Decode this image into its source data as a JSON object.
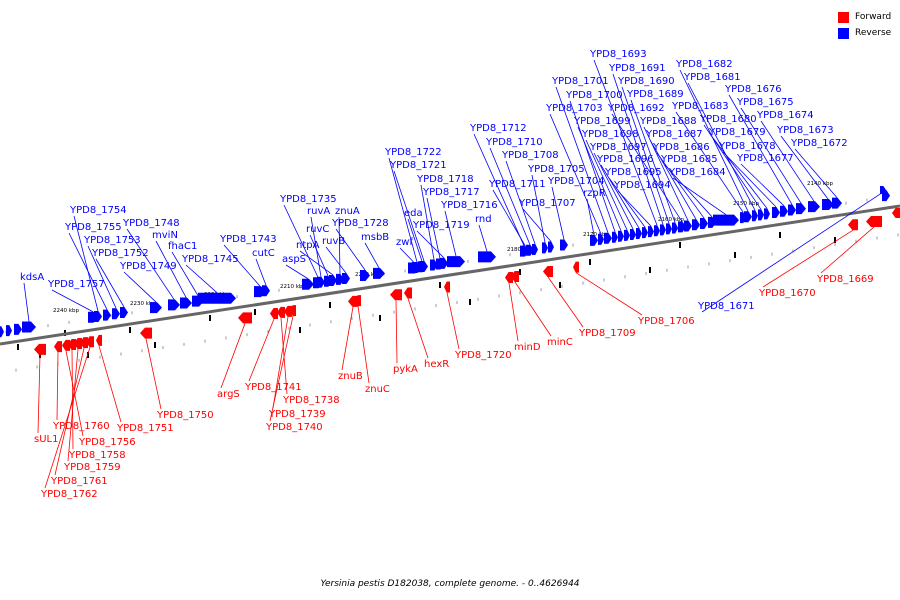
{
  "caption": "Yersinia pestis D182038, complete genome. - 0..4626944",
  "legend": [
    {
      "label": "Forward",
      "color": "#ff0000"
    },
    {
      "label": "Reverse",
      "color": "#0000ff"
    }
  ],
  "colors": {
    "forward": "#ff0000",
    "reverse": "#0000ff",
    "axis": "#666666"
  },
  "scale": {
    "ticks": [
      "2240 kbp",
      "2230 kbp",
      "2220 kbp",
      "2210 kbp",
      "2200 kbp",
      "2190 kbp",
      "2180 kbp",
      "2170 kbp",
      "2160 kbp",
      "2150 kbp",
      "2140 kbp"
    ]
  },
  "genes": [
    {
      "name": "kdsA",
      "strand": "reverse"
    },
    {
      "name": "YPD8_1757",
      "strand": "reverse"
    },
    {
      "name": "YPD8_1754",
      "strand": "reverse"
    },
    {
      "name": "YPD8_1755",
      "strand": "reverse"
    },
    {
      "name": "YPD8_1753",
      "strand": "reverse"
    },
    {
      "name": "YPD8_1752",
      "strand": "reverse"
    },
    {
      "name": "YPD8_1749",
      "strand": "reverse"
    },
    {
      "name": "YPD8_1748",
      "strand": "reverse"
    },
    {
      "name": "mviN",
      "strand": "reverse"
    },
    {
      "name": "fhaC1",
      "strand": "reverse"
    },
    {
      "name": "YPD8_1745",
      "strand": "reverse"
    },
    {
      "name": "YPD8_1743",
      "strand": "reverse"
    },
    {
      "name": "cutC",
      "strand": "reverse"
    },
    {
      "name": "aspS",
      "strand": "reverse"
    },
    {
      "name": "YPD8_1735",
      "strand": "reverse"
    },
    {
      "name": "ruvA",
      "strand": "reverse"
    },
    {
      "name": "ruvC",
      "strand": "reverse"
    },
    {
      "name": "ntpA",
      "strand": "reverse"
    },
    {
      "name": "znuA",
      "strand": "reverse"
    },
    {
      "name": "ruvB",
      "strand": "reverse"
    },
    {
      "name": "YPD8_1728",
      "strand": "reverse"
    },
    {
      "name": "msbB",
      "strand": "reverse"
    },
    {
      "name": "YPD8_1722",
      "strand": "reverse"
    },
    {
      "name": "YPD8_1721",
      "strand": "reverse"
    },
    {
      "name": "YPD8_1718",
      "strand": "reverse"
    },
    {
      "name": "YPD8_1717",
      "strand": "reverse"
    },
    {
      "name": "eda",
      "strand": "reverse"
    },
    {
      "name": "YPD8_1716",
      "strand": "reverse"
    },
    {
      "name": "zwf",
      "strand": "reverse"
    },
    {
      "name": "YPD8_1719",
      "strand": "reverse"
    },
    {
      "name": "rnd",
      "strand": "reverse"
    },
    {
      "name": "YPD8_1712",
      "strand": "reverse"
    },
    {
      "name": "YPD8_1710",
      "strand": "reverse"
    },
    {
      "name": "YPD8_1708",
      "strand": "reverse"
    },
    {
      "name": "YPD8_1711",
      "strand": "reverse"
    },
    {
      "name": "YPD8_1705",
      "strand": "reverse"
    },
    {
      "name": "YPD8_1704",
      "strand": "reverse"
    },
    {
      "name": "YPD8_1707",
      "strand": "reverse"
    },
    {
      "name": "rzpR",
      "strand": "reverse"
    },
    {
      "name": "YPD8_1701",
      "strand": "reverse"
    },
    {
      "name": "YPD8_1700",
      "strand": "reverse"
    },
    {
      "name": "YPD8_1703",
      "strand": "reverse"
    },
    {
      "name": "YPD8_1699",
      "strand": "reverse"
    },
    {
      "name": "YPD8_1698",
      "strand": "reverse"
    },
    {
      "name": "YPD8_1697",
      "strand": "reverse"
    },
    {
      "name": "YPD8_1696",
      "strand": "reverse"
    },
    {
      "name": "YPD8_1695",
      "strand": "reverse"
    },
    {
      "name": "YPD8_1694",
      "strand": "reverse"
    },
    {
      "name": "YPD8_1693",
      "strand": "reverse"
    },
    {
      "name": "YPD8_1691",
      "strand": "reverse"
    },
    {
      "name": "YPD8_1690",
      "strand": "reverse"
    },
    {
      "name": "YPD8_1689",
      "strand": "reverse"
    },
    {
      "name": "YPD8_1692",
      "strand": "reverse"
    },
    {
      "name": "YPD8_1688",
      "strand": "reverse"
    },
    {
      "name": "YPD8_1687",
      "strand": "reverse"
    },
    {
      "name": "YPD8_1686",
      "strand": "reverse"
    },
    {
      "name": "YPD8_1685",
      "strand": "reverse"
    },
    {
      "name": "YPD8_1684",
      "strand": "reverse"
    },
    {
      "name": "YPD8_1682",
      "strand": "reverse"
    },
    {
      "name": "YPD8_1681",
      "strand": "reverse"
    },
    {
      "name": "YPD8_1683",
      "strand": "reverse"
    },
    {
      "name": "YPD8_1680",
      "strand": "reverse"
    },
    {
      "name": "YPD8_1679",
      "strand": "reverse"
    },
    {
      "name": "YPD8_1678",
      "strand": "reverse"
    },
    {
      "name": "YPD8_1677",
      "strand": "reverse"
    },
    {
      "name": "YPD8_1676",
      "strand": "reverse"
    },
    {
      "name": "YPD8_1675",
      "strand": "reverse"
    },
    {
      "name": "YPD8_1674",
      "strand": "reverse"
    },
    {
      "name": "YPD8_1673",
      "strand": "reverse"
    },
    {
      "name": "YPD8_1672",
      "strand": "reverse"
    },
    {
      "name": "YPD8_1671",
      "strand": "reverse"
    },
    {
      "name": "sUL1",
      "strand": "forward"
    },
    {
      "name": "YPD8_1760",
      "strand": "forward"
    },
    {
      "name": "YPD8_1756",
      "strand": "forward"
    },
    {
      "name": "YPD8_1758",
      "strand": "forward"
    },
    {
      "name": "YPD8_1759",
      "strand": "forward"
    },
    {
      "name": "YPD8_1761",
      "strand": "forward"
    },
    {
      "name": "YPD8_1762",
      "strand": "forward"
    },
    {
      "name": "YPD8_1751",
      "strand": "forward"
    },
    {
      "name": "YPD8_1750",
      "strand": "forward"
    },
    {
      "name": "argS",
      "strand": "forward"
    },
    {
      "name": "YPD8_1741",
      "strand": "forward"
    },
    {
      "name": "YPD8_1738",
      "strand": "forward"
    },
    {
      "name": "YPD8_1739",
      "strand": "forward"
    },
    {
      "name": "YPD8_1740",
      "strand": "forward"
    },
    {
      "name": "znuB",
      "strand": "forward"
    },
    {
      "name": "znuC",
      "strand": "forward"
    },
    {
      "name": "pykA",
      "strand": "forward"
    },
    {
      "name": "hexR",
      "strand": "forward"
    },
    {
      "name": "YPD8_1720",
      "strand": "forward"
    },
    {
      "name": "minD",
      "strand": "forward"
    },
    {
      "name": "minC",
      "strand": "forward"
    },
    {
      "name": "YPD8_1709",
      "strand": "forward"
    },
    {
      "name": "YPD8_1706",
      "strand": "forward"
    },
    {
      "name": "YPD8_1670",
      "strand": "forward"
    },
    {
      "name": "YPD8_1669",
      "strand": "forward"
    }
  ]
}
